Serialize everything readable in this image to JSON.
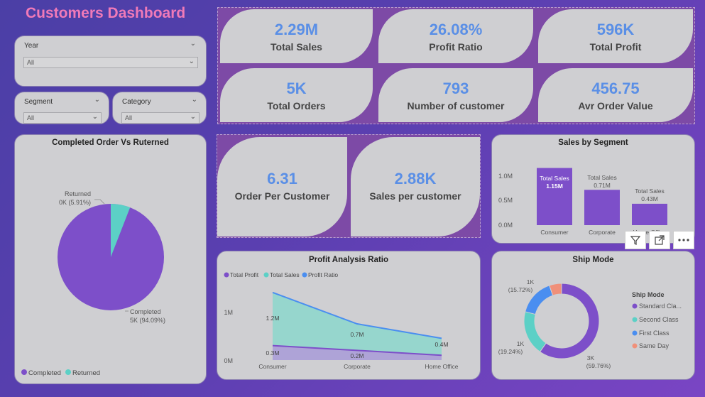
{
  "title": "Customers Dashboard",
  "slicers": {
    "year": {
      "label": "Year",
      "value": "All"
    },
    "segment": {
      "label": "Segment",
      "value": "All"
    },
    "category": {
      "label": "Category",
      "value": "All"
    }
  },
  "kpis": [
    {
      "value": "2.29M",
      "label": "Total Sales"
    },
    {
      "value": "26.08%",
      "label": "Profit Ratio"
    },
    {
      "value": "596K",
      "label": "Total Profit"
    },
    {
      "value": "5K",
      "label": "Total Orders"
    },
    {
      "value": "793",
      "label": "Number of customer"
    },
    {
      "value": "456.75",
      "label": "Avr Order Value"
    }
  ],
  "kpis2": [
    {
      "value": "6.31",
      "label": "Order Per Customer"
    },
    {
      "value": "2.88K",
      "label": "Sales per customer"
    }
  ],
  "colors": {
    "purple": "#7d4fc9",
    "teal": "#5cd0c6",
    "blue": "#4a8ef0",
    "salmon": "#f0907a"
  },
  "pie": {
    "title": "Completed Order Vs Ruterned",
    "returned_label_1": "Returned",
    "returned_label_2": "0K (5.91%)",
    "completed_label_1": "Completed",
    "completed_label_2": "5K (94.09%)",
    "legend": [
      "Completed",
      "Returned"
    ]
  },
  "segment_chart": {
    "title": "Sales by Segment",
    "ticks": [
      "1.0M",
      "0.5M",
      "0.0M"
    ],
    "bar_labels": [
      {
        "name": "Total Sales",
        "value": "1.15M"
      },
      {
        "name": "Total Sales",
        "value": "0.71M"
      },
      {
        "name": "Total Sales",
        "value": "0.43M"
      }
    ],
    "categories": [
      "Consumer",
      "Corporate",
      "Home Office"
    ]
  },
  "profit_chart": {
    "title": "Profit Analysis Ratio",
    "legend": [
      "Total Profit",
      "Total Sales",
      "Profit Ratio"
    ],
    "ticks": [
      "1M",
      "0M"
    ],
    "categories": [
      "Consumer",
      "Corporate",
      "Home Office"
    ],
    "sales_labels": [
      "1.2M",
      "0.7M",
      "0.4M"
    ],
    "profit_labels": [
      "0.3M",
      "0.2M"
    ]
  },
  "ship_chart": {
    "title": "Ship Mode",
    "legend_title": "Ship Mode",
    "legend": [
      "Standard Cla...",
      "Second Class",
      "First Class",
      "Same Day"
    ],
    "label_first_1": "1K",
    "label_first_2": "(15.72%)",
    "label_second_1": "1K",
    "label_second_2": "(19.24%)",
    "label_std_1": "3K",
    "label_std_2": "(59.76%)"
  },
  "chart_data": [
    {
      "type": "pie",
      "title": "Completed Order Vs Ruterned",
      "categories": [
        "Completed",
        "Returned"
      ],
      "values": [
        94.09,
        5.91
      ]
    },
    {
      "type": "bar",
      "title": "Sales by Segment",
      "categories": [
        "Consumer",
        "Corporate",
        "Home Office"
      ],
      "values": [
        1.15,
        0.71,
        0.43
      ],
      "ylim": [
        0,
        1.2
      ]
    },
    {
      "type": "area",
      "title": "Profit Analysis Ratio",
      "x": [
        "Consumer",
        "Corporate",
        "Home Office"
      ],
      "series": [
        {
          "name": "Total Sales",
          "values": [
            1.2,
            0.7,
            0.4
          ]
        },
        {
          "name": "Total Profit",
          "values": [
            0.3,
            0.2,
            0.1
          ]
        },
        {
          "name": "Profit Ratio",
          "values": [
            1.4,
            0.75,
            0.45
          ]
        }
      ],
      "ylim": [
        0,
        1.6
      ]
    },
    {
      "type": "pie",
      "title": "Ship Mode",
      "categories": [
        "Standard Class",
        "Second Class",
        "First Class",
        "Same Day"
      ],
      "values": [
        59.76,
        19.24,
        15.72,
        5.28
      ]
    }
  ]
}
